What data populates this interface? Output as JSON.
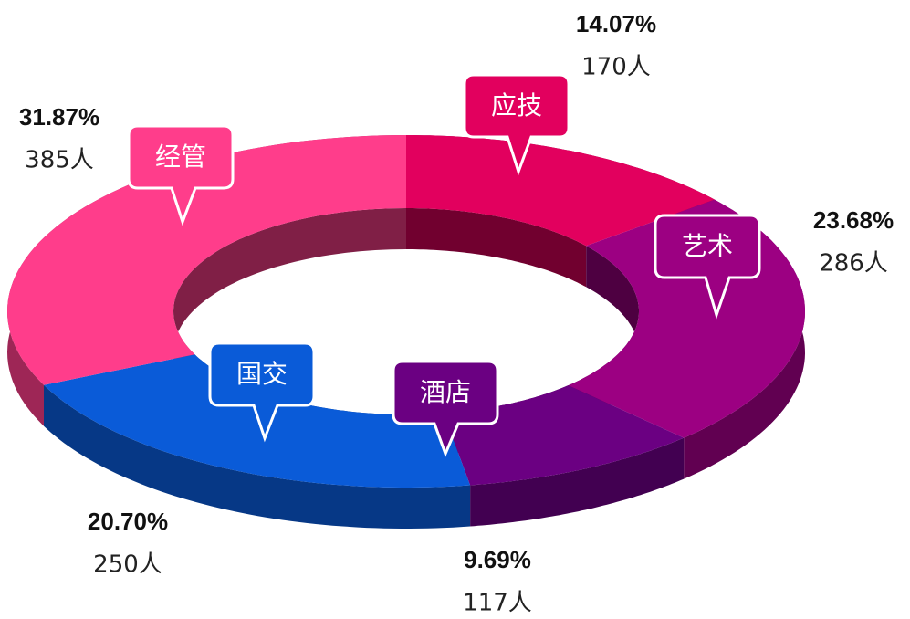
{
  "chart_data": {
    "type": "donut3d",
    "categories": [
      "应技",
      "艺术",
      "酒店",
      "国交",
      "经管"
    ],
    "values": [
      14.07,
      23.68,
      9.69,
      20.7,
      31.87
    ],
    "value_labels": [
      "14.07%",
      "23.68%",
      "9.69%",
      "20.70%",
      "31.87%"
    ],
    "counts": [
      170,
      286,
      117,
      250,
      385
    ],
    "count_labels": [
      "170人",
      "286人",
      "117人",
      "250人",
      "385人"
    ],
    "colors": [
      "#e2005e",
      "#9c0082",
      "#6b0082",
      "#0a5bd8",
      "#ff3d8b"
    ]
  }
}
